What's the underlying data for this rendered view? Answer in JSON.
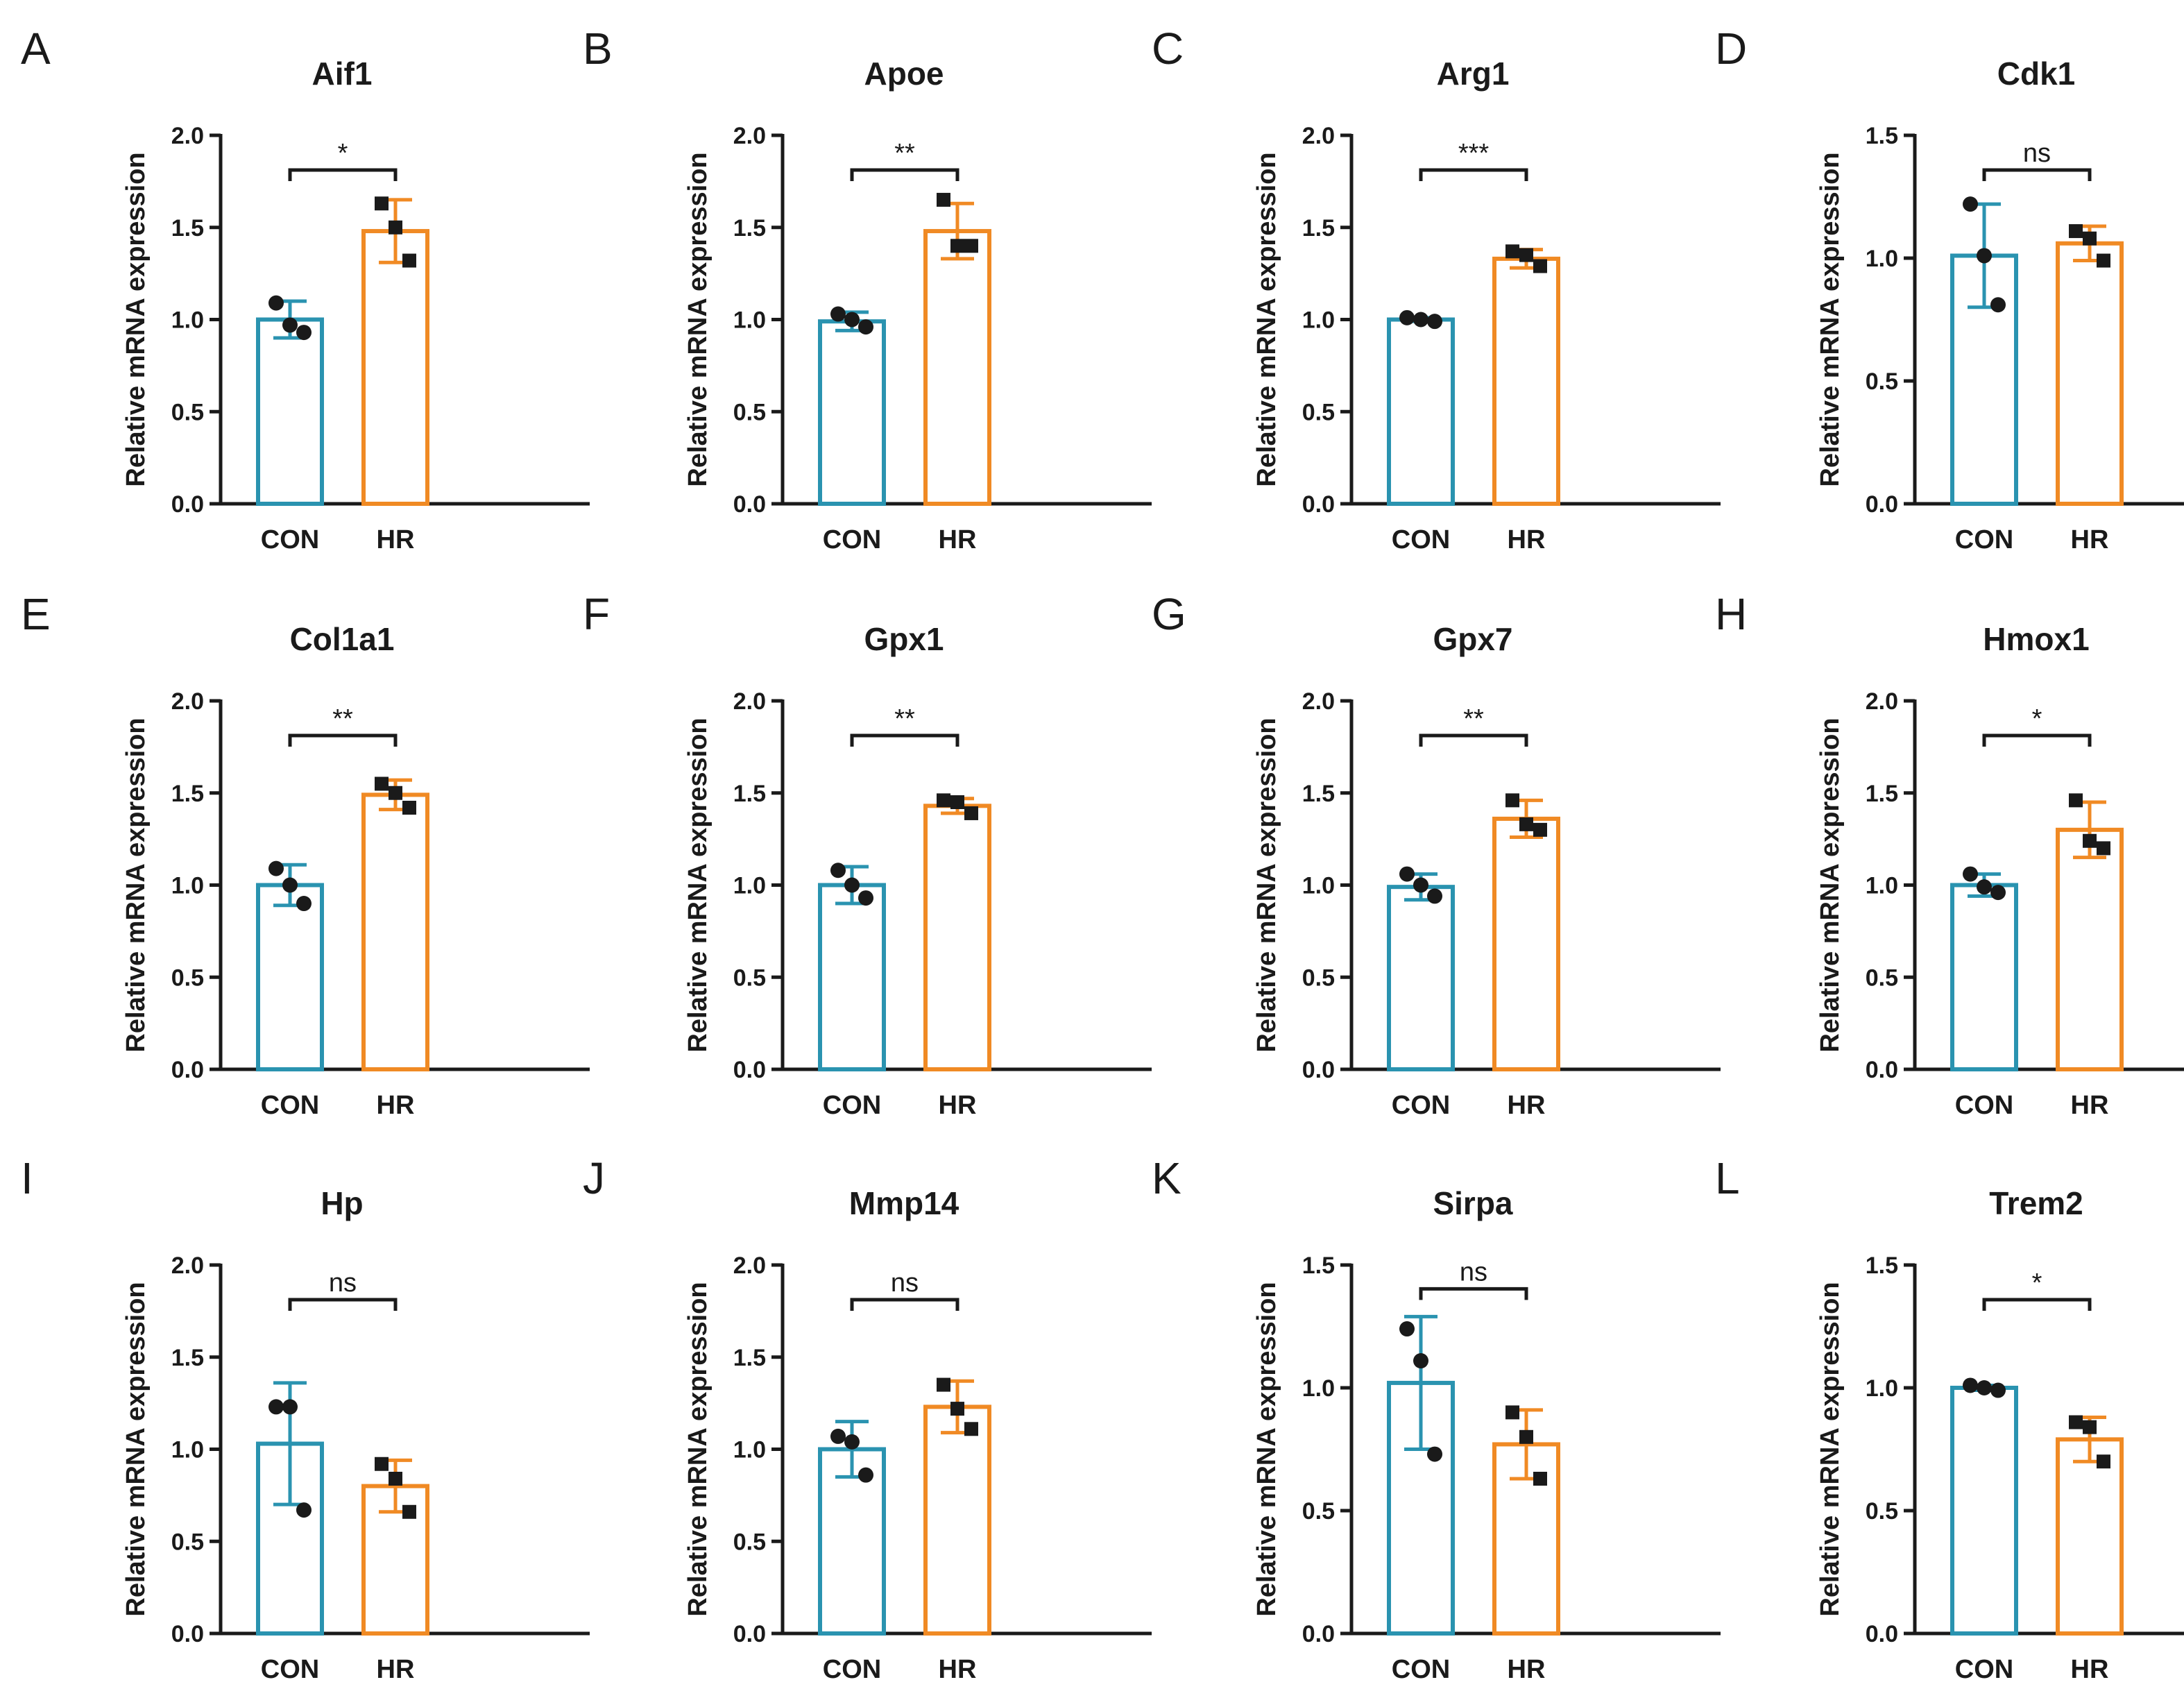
{
  "colors": {
    "CON": "#2a93b0",
    "HR": "#f08a24",
    "dot": "#1a1a1a"
  },
  "ylabel": "Relative mRNA expression",
  "categories": [
    "CON",
    "HR"
  ],
  "chart_data": [
    {
      "letter": "A",
      "type": "bar",
      "title": "Aif1",
      "ylim": [
        0,
        2.0
      ],
      "yticks": [
        "0.0",
        "0.5",
        "1.0",
        "1.5",
        "2.0"
      ],
      "series": [
        {
          "name": "CON",
          "mean": 1.0,
          "sd": 0.1,
          "points": [
            1.09,
            0.97,
            0.93
          ]
        },
        {
          "name": "HR",
          "mean": 1.48,
          "sd": 0.17,
          "points": [
            1.63,
            1.5,
            1.32
          ]
        }
      ],
      "sig": "*"
    },
    {
      "letter": "B",
      "type": "bar",
      "title": "Apoe",
      "ylim": [
        0,
        2.0
      ],
      "yticks": [
        "0.0",
        "0.5",
        "1.0",
        "1.5",
        "2.0"
      ],
      "series": [
        {
          "name": "CON",
          "mean": 0.99,
          "sd": 0.05,
          "points": [
            1.03,
            1.0,
            0.96
          ]
        },
        {
          "name": "HR",
          "mean": 1.48,
          "sd": 0.15,
          "points": [
            1.65,
            1.4,
            1.4
          ]
        }
      ],
      "sig": "**"
    },
    {
      "letter": "C",
      "type": "bar",
      "title": "Arg1",
      "ylim": [
        0,
        2.0
      ],
      "yticks": [
        "0.0",
        "0.5",
        "1.0",
        "1.5",
        "2.0"
      ],
      "series": [
        {
          "name": "CON",
          "mean": 1.0,
          "sd": 0.01,
          "points": [
            1.01,
            1.0,
            0.99
          ]
        },
        {
          "name": "HR",
          "mean": 1.33,
          "sd": 0.05,
          "points": [
            1.37,
            1.35,
            1.29
          ]
        }
      ],
      "sig": "***"
    },
    {
      "letter": "D",
      "type": "bar",
      "title": "Cdk1",
      "ylim": [
        0,
        1.5
      ],
      "yticks": [
        "0.0",
        "0.5",
        "1.0",
        "1.5"
      ],
      "series": [
        {
          "name": "CON",
          "mean": 1.01,
          "sd": 0.21,
          "points": [
            1.22,
            1.01,
            0.81
          ]
        },
        {
          "name": "HR",
          "mean": 1.06,
          "sd": 0.07,
          "points": [
            1.11,
            1.08,
            0.99
          ]
        }
      ],
      "sig": "ns"
    },
    {
      "letter": "E",
      "type": "bar",
      "title": "Col1a1",
      "ylim": [
        0,
        2.0
      ],
      "yticks": [
        "0.0",
        "0.5",
        "1.0",
        "1.5",
        "2.0"
      ],
      "series": [
        {
          "name": "CON",
          "mean": 1.0,
          "sd": 0.11,
          "points": [
            1.09,
            1.0,
            0.9
          ]
        },
        {
          "name": "HR",
          "mean": 1.49,
          "sd": 0.08,
          "points": [
            1.55,
            1.5,
            1.42
          ]
        }
      ],
      "sig": "**"
    },
    {
      "letter": "F",
      "type": "bar",
      "title": "Gpx1",
      "ylim": [
        0,
        2.0
      ],
      "yticks": [
        "0.0",
        "0.5",
        "1.0",
        "1.5",
        "2.0"
      ],
      "series": [
        {
          "name": "CON",
          "mean": 1.0,
          "sd": 0.1,
          "points": [
            1.08,
            1.0,
            0.93
          ]
        },
        {
          "name": "HR",
          "mean": 1.43,
          "sd": 0.04,
          "points": [
            1.46,
            1.45,
            1.39
          ]
        }
      ],
      "sig": "**"
    },
    {
      "letter": "G",
      "type": "bar",
      "title": "Gpx7",
      "ylim": [
        0,
        2.0
      ],
      "yticks": [
        "0.0",
        "0.5",
        "1.0",
        "1.5",
        "2.0"
      ],
      "series": [
        {
          "name": "CON",
          "mean": 0.99,
          "sd": 0.07,
          "points": [
            1.06,
            1.0,
            0.94
          ]
        },
        {
          "name": "HR",
          "mean": 1.36,
          "sd": 0.1,
          "points": [
            1.46,
            1.33,
            1.3
          ]
        }
      ],
      "sig": "**"
    },
    {
      "letter": "H",
      "type": "bar",
      "title": "Hmox1",
      "ylim": [
        0,
        2.0
      ],
      "yticks": [
        "0.0",
        "0.5",
        "1.0",
        "1.5",
        "2.0"
      ],
      "series": [
        {
          "name": "CON",
          "mean": 1.0,
          "sd": 0.06,
          "points": [
            1.06,
            0.99,
            0.96
          ]
        },
        {
          "name": "HR",
          "mean": 1.3,
          "sd": 0.15,
          "points": [
            1.46,
            1.24,
            1.2
          ]
        }
      ],
      "sig": "*"
    },
    {
      "letter": "I",
      "type": "bar",
      "title": "Hp",
      "ylim": [
        0,
        2.0
      ],
      "yticks": [
        "0.0",
        "0.5",
        "1.0",
        "1.5",
        "2.0"
      ],
      "series": [
        {
          "name": "CON",
          "mean": 1.03,
          "sd": 0.33,
          "points": [
            1.23,
            1.23,
            0.67
          ]
        },
        {
          "name": "HR",
          "mean": 0.8,
          "sd": 0.14,
          "points": [
            0.92,
            0.84,
            0.66
          ]
        }
      ],
      "sig": "ns"
    },
    {
      "letter": "J",
      "type": "bar",
      "title": "Mmp14",
      "ylim": [
        0,
        2.0
      ],
      "yticks": [
        "0.0",
        "0.5",
        "1.0",
        "1.5",
        "2.0"
      ],
      "series": [
        {
          "name": "CON",
          "mean": 1.0,
          "sd": 0.15,
          "points": [
            1.07,
            1.04,
            0.86
          ]
        },
        {
          "name": "HR",
          "mean": 1.23,
          "sd": 0.14,
          "points": [
            1.35,
            1.22,
            1.11
          ]
        }
      ],
      "sig": "ns"
    },
    {
      "letter": "K",
      "type": "bar",
      "title": "Sirpa",
      "ylim": [
        0,
        1.5
      ],
      "yticks": [
        "0.0",
        "0.5",
        "1.0",
        "1.5"
      ],
      "series": [
        {
          "name": "CON",
          "mean": 1.02,
          "sd": 0.27,
          "points": [
            1.24,
            1.11,
            0.73
          ]
        },
        {
          "name": "HR",
          "mean": 0.77,
          "sd": 0.14,
          "points": [
            0.9,
            0.8,
            0.63
          ]
        }
      ],
      "sig": "ns"
    },
    {
      "letter": "L",
      "type": "bar",
      "title": "Trem2",
      "ylim": [
        0,
        1.5
      ],
      "yticks": [
        "0.0",
        "0.5",
        "1.0",
        "1.5"
      ],
      "series": [
        {
          "name": "CON",
          "mean": 1.0,
          "sd": 0.01,
          "points": [
            1.01,
            1.0,
            0.99
          ]
        },
        {
          "name": "HR",
          "mean": 0.79,
          "sd": 0.09,
          "points": [
            0.86,
            0.84,
            0.7
          ]
        }
      ],
      "sig": "*"
    }
  ]
}
